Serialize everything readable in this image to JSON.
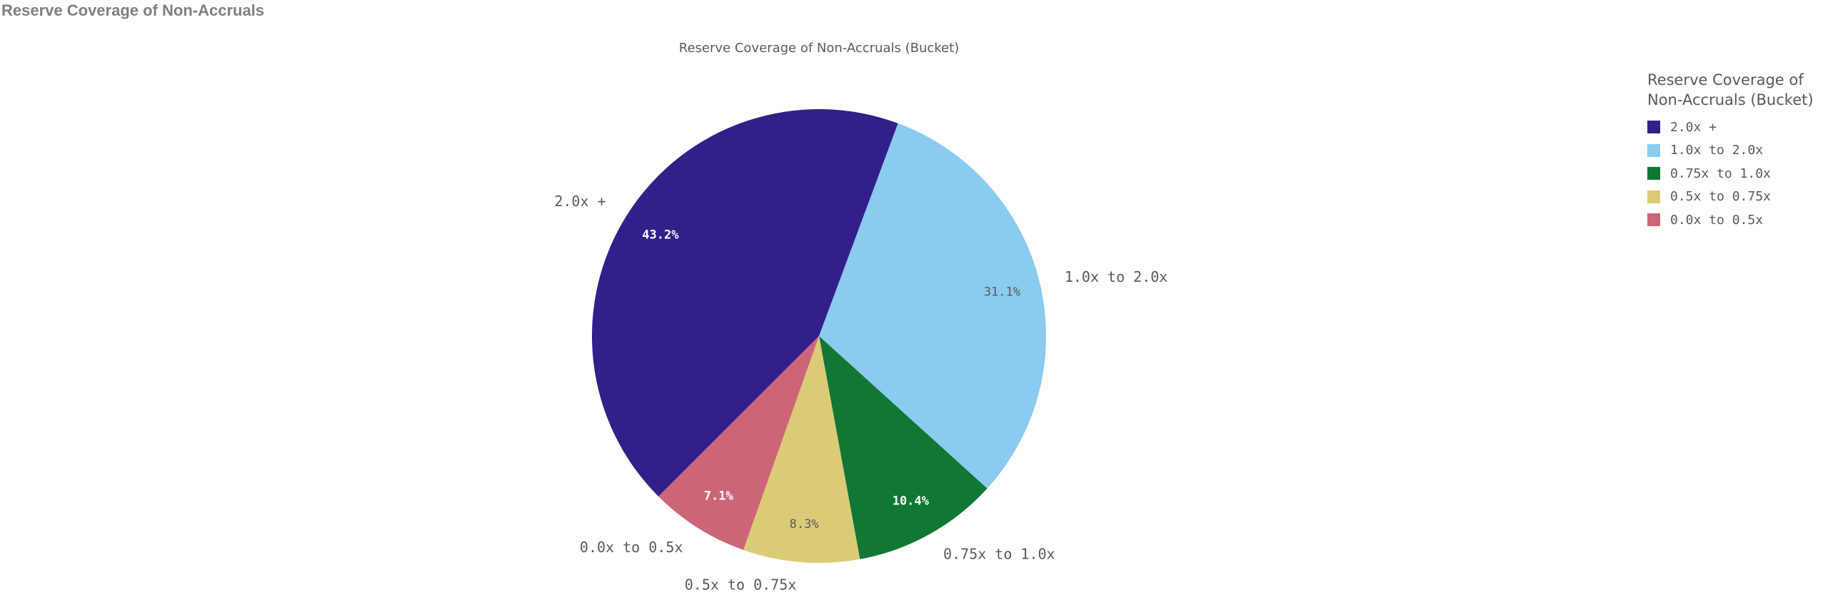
{
  "page": {
    "title": "Reserve Coverage of Non-Accruals"
  },
  "legend": {
    "title_line1": "Reserve Coverage of",
    "title_line2": "Non-Accruals (Bucket)"
  },
  "chart_data": {
    "type": "pie",
    "title": "Reserve Coverage of Non-Accruals (Bucket)",
    "legend_position": "right",
    "slices": [
      {
        "label": "2.0x +",
        "value": 43.2,
        "value_label": "43.2%",
        "color": "#321f8a",
        "value_label_color": "#ffffff"
      },
      {
        "label": "1.0x to 2.0x",
        "value": 31.1,
        "value_label": "31.1%",
        "color": "#8acbef",
        "value_label_color": "#595959"
      },
      {
        "label": "0.75x to 1.0x",
        "value": 10.4,
        "value_label": "10.4%",
        "color": "#107735",
        "value_label_color": "#ffffff"
      },
      {
        "label": "0.5x to 0.75x",
        "value": 8.3,
        "value_label": "8.3%",
        "color": "#dccb76",
        "value_label_color": "#595959"
      },
      {
        "label": "0.0x to 0.5x",
        "value": 7.1,
        "value_label": "7.1%",
        "color": "#cc6677",
        "value_label_color": "#ffffff"
      }
    ]
  }
}
